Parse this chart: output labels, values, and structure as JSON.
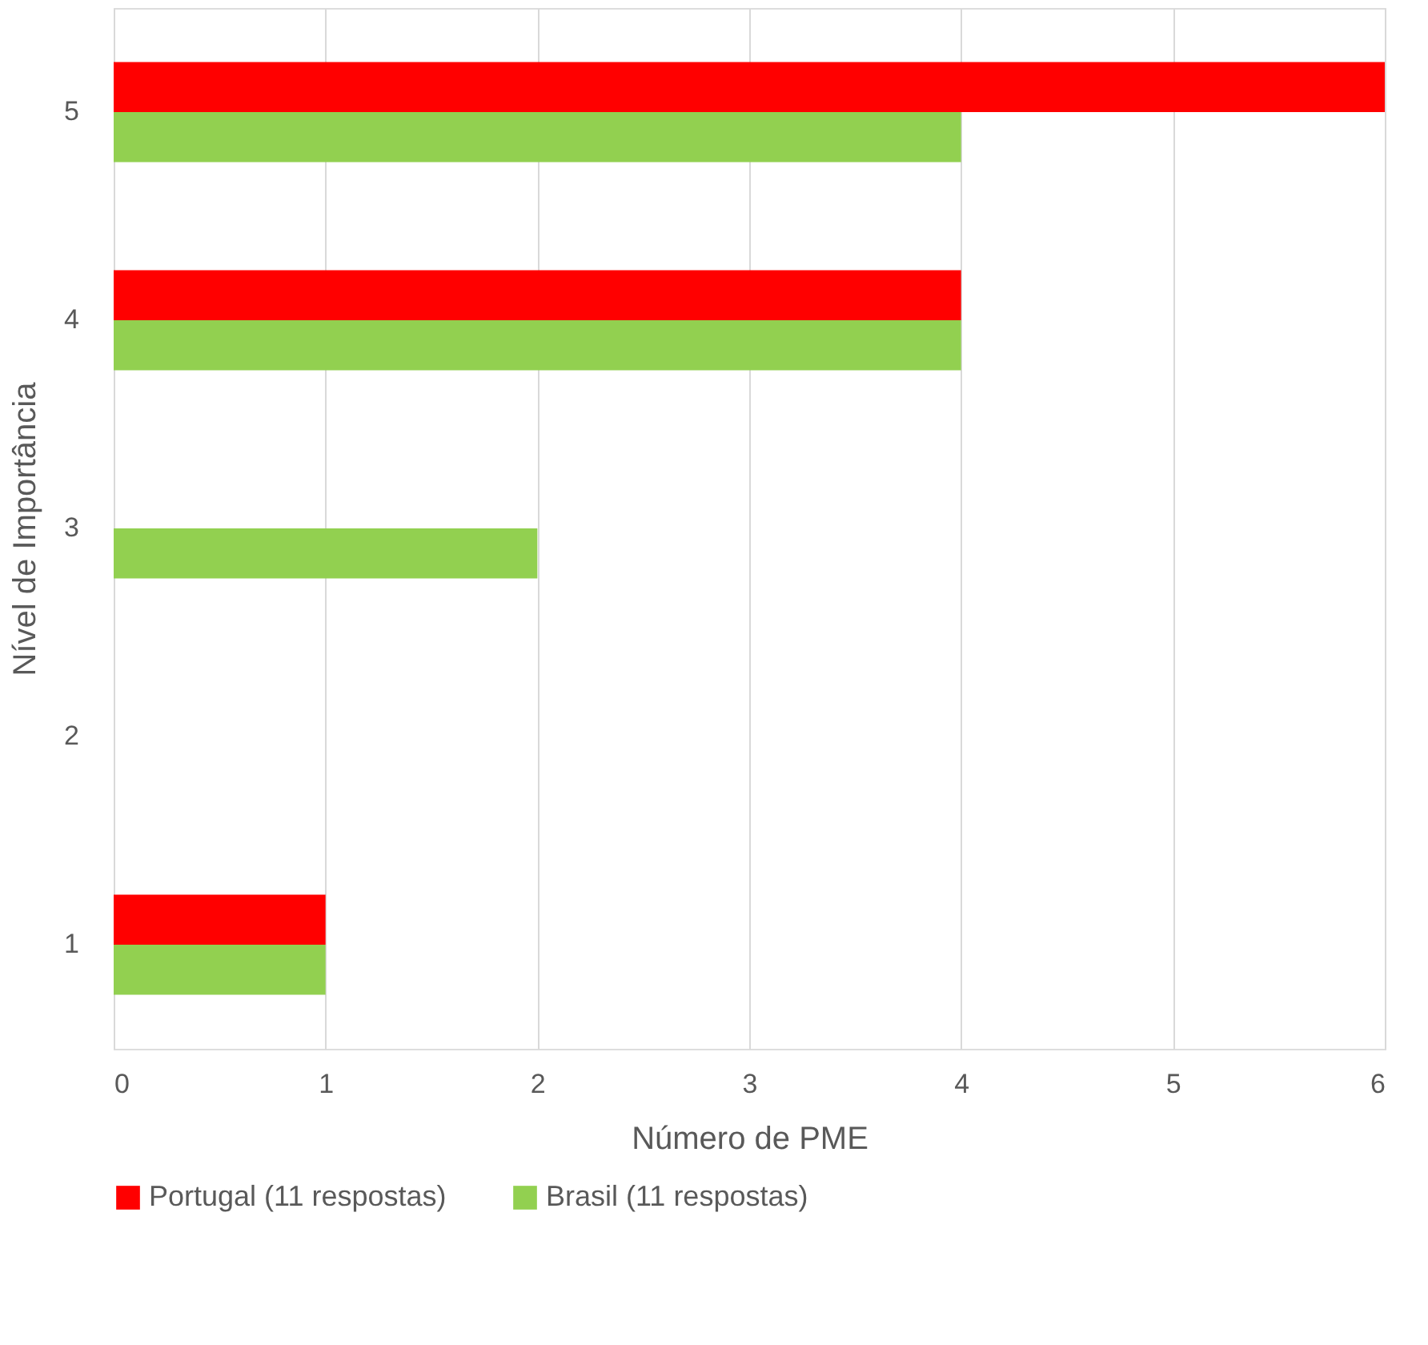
{
  "chart_data": {
    "type": "bar",
    "orientation": "horizontal",
    "xlabel": "Número de PME",
    "ylabel": "Nível de Importância",
    "categories": [
      "5",
      "4",
      "3",
      "2",
      "1"
    ],
    "series": [
      {
        "name": "Portugal (11 respostas)",
        "color": "#ff0000",
        "values": [
          6,
          4,
          0,
          0,
          1
        ]
      },
      {
        "name": "Brasil (11 respostas)",
        "color": "#92d050",
        "values": [
          4,
          4,
          2,
          0,
          1
        ]
      }
    ],
    "xlim": [
      0,
      6
    ],
    "xticks": [
      0,
      1,
      2,
      3,
      4,
      5,
      6
    ],
    "grid": "x",
    "legend": "bottom"
  }
}
